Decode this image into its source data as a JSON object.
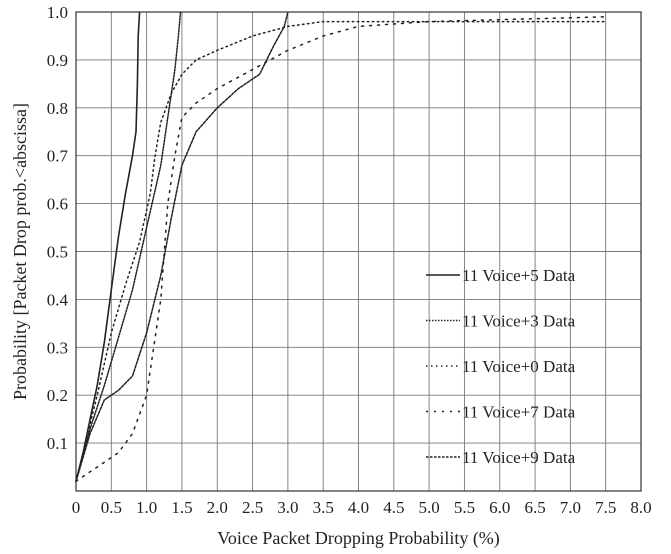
{
  "chart_data": {
    "type": "line",
    "title": "",
    "xlabel": "Voice Packet Dropping Probability (%)",
    "ylabel": "Probability [Packet Drop prob.<abscissa]",
    "xlim": [
      0,
      8.0
    ],
    "ylim": [
      0,
      1.0
    ],
    "x_ticks": [
      "0",
      "0.5",
      "1.0",
      "1.5",
      "2.0",
      "2.5",
      "3.0",
      "3.5",
      "4.0",
      "4.5",
      "5.0",
      "5.5",
      "6.0",
      "6.5",
      "7.0",
      "7.5",
      "8.0"
    ],
    "y_ticks": [
      "0.1",
      "0.2",
      "0.3",
      "0.4",
      "0.5",
      "0.6",
      "0.7",
      "0.8",
      "0.9",
      "1.0"
    ],
    "grid": true,
    "legend_position": "right",
    "series": [
      {
        "name": "11 Voice+5 Data",
        "dash": "none",
        "points": [
          [
            0,
            0.02
          ],
          [
            0.1,
            0.08
          ],
          [
            0.2,
            0.15
          ],
          [
            0.3,
            0.22
          ],
          [
            0.4,
            0.31
          ],
          [
            0.5,
            0.42
          ],
          [
            0.6,
            0.53
          ],
          [
            0.7,
            0.62
          ],
          [
            0.8,
            0.7
          ],
          [
            0.85,
            0.75
          ],
          [
            0.87,
            0.85
          ],
          [
            0.88,
            0.95
          ],
          [
            0.9,
            1.0
          ]
        ]
      },
      {
        "name": "11 Voice+3 Data",
        "dash": "1.5 1.5",
        "points": [
          [
            0,
            0.02
          ],
          [
            0.2,
            0.13
          ],
          [
            0.4,
            0.22
          ],
          [
            0.6,
            0.32
          ],
          [
            0.8,
            0.42
          ],
          [
            1.0,
            0.55
          ],
          [
            1.2,
            0.68
          ],
          [
            1.3,
            0.78
          ],
          [
            1.4,
            0.88
          ],
          [
            1.45,
            0.95
          ],
          [
            1.48,
            1.0
          ]
        ]
      },
      {
        "name": "11 Voice+0 Data",
        "dash": "1.5 3.5",
        "points": [
          [
            0,
            0.02
          ],
          [
            0.3,
            0.2
          ],
          [
            0.5,
            0.33
          ],
          [
            0.7,
            0.43
          ],
          [
            0.9,
            0.52
          ],
          [
            1.05,
            0.62
          ],
          [
            1.12,
            0.7
          ],
          [
            1.2,
            0.77
          ],
          [
            1.35,
            0.83
          ],
          [
            1.5,
            0.87
          ],
          [
            1.7,
            0.9
          ],
          [
            2.0,
            0.92
          ],
          [
            2.5,
            0.95
          ],
          [
            3.0,
            0.97
          ],
          [
            3.5,
            0.98
          ],
          [
            4.5,
            0.98
          ],
          [
            5.5,
            0.98
          ],
          [
            7.5,
            0.98
          ]
        ]
      },
      {
        "name": "11 Voice+7 Data",
        "dash": "2 6",
        "points": [
          [
            0,
            0.02
          ],
          [
            0.2,
            0.04
          ],
          [
            0.4,
            0.06
          ],
          [
            0.6,
            0.08
          ],
          [
            0.8,
            0.12
          ],
          [
            1.0,
            0.2
          ],
          [
            1.2,
            0.4
          ],
          [
            1.3,
            0.6
          ],
          [
            1.4,
            0.7
          ],
          [
            1.5,
            0.78
          ],
          [
            1.7,
            0.81
          ],
          [
            2.0,
            0.84
          ],
          [
            2.5,
            0.88
          ],
          [
            3.0,
            0.92
          ],
          [
            3.5,
            0.95
          ],
          [
            4.0,
            0.97
          ],
          [
            5.0,
            0.98
          ],
          [
            7.5,
            0.99
          ]
        ]
      },
      {
        "name": "11 Voice+9 Data",
        "dash": "2.5 1.5",
        "points": [
          [
            0,
            0.02
          ],
          [
            0.2,
            0.12
          ],
          [
            0.4,
            0.19
          ],
          [
            0.6,
            0.21
          ],
          [
            0.8,
            0.24
          ],
          [
            1.0,
            0.33
          ],
          [
            1.2,
            0.45
          ],
          [
            1.35,
            0.57
          ],
          [
            1.5,
            0.68
          ],
          [
            1.7,
            0.75
          ],
          [
            2.0,
            0.8
          ],
          [
            2.3,
            0.84
          ],
          [
            2.6,
            0.87
          ],
          [
            2.8,
            0.93
          ],
          [
            2.95,
            0.97
          ],
          [
            3.0,
            1.0
          ]
        ]
      }
    ]
  }
}
